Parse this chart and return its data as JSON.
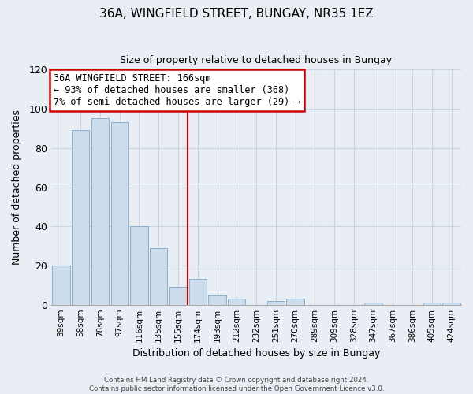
{
  "title": "36A, WINGFIELD STREET, BUNGAY, NR35 1EZ",
  "subtitle": "Size of property relative to detached houses in Bungay",
  "xlabel": "Distribution of detached houses by size in Bungay",
  "ylabel": "Number of detached properties",
  "bar_labels": [
    "39sqm",
    "58sqm",
    "78sqm",
    "97sqm",
    "116sqm",
    "135sqm",
    "155sqm",
    "174sqm",
    "193sqm",
    "212sqm",
    "232sqm",
    "251sqm",
    "270sqm",
    "289sqm",
    "309sqm",
    "328sqm",
    "347sqm",
    "367sqm",
    "386sqm",
    "405sqm",
    "424sqm"
  ],
  "bar_values": [
    20,
    89,
    95,
    93,
    40,
    29,
    9,
    13,
    5,
    3,
    0,
    2,
    3,
    0,
    0,
    0,
    1,
    0,
    0,
    1,
    1
  ],
  "bar_color": "#ccdcec",
  "bar_edge_color": "#8ab0cc",
  "annotation_title": "36A WINGFIELD STREET: 166sqm",
  "annotation_line1": "← 93% of detached houses are smaller (368)",
  "annotation_line2": "7% of semi-detached houses are larger (29) →",
  "annotation_box_color": "#ffffff",
  "annotation_box_edge_color": "#cc0000",
  "vline_x_index": 7,
  "vline_color": "#cc0000",
  "ylim": [
    0,
    120
  ],
  "yticks": [
    0,
    20,
    40,
    60,
    80,
    100,
    120
  ],
  "grid_color": "#c8d4e0",
  "bg_color": "#e8eef4",
  "footer_line1": "Contains HM Land Registry data © Crown copyright and database right 2024.",
  "footer_line2": "Contains public sector information licensed under the Open Government Licence v3.0."
}
